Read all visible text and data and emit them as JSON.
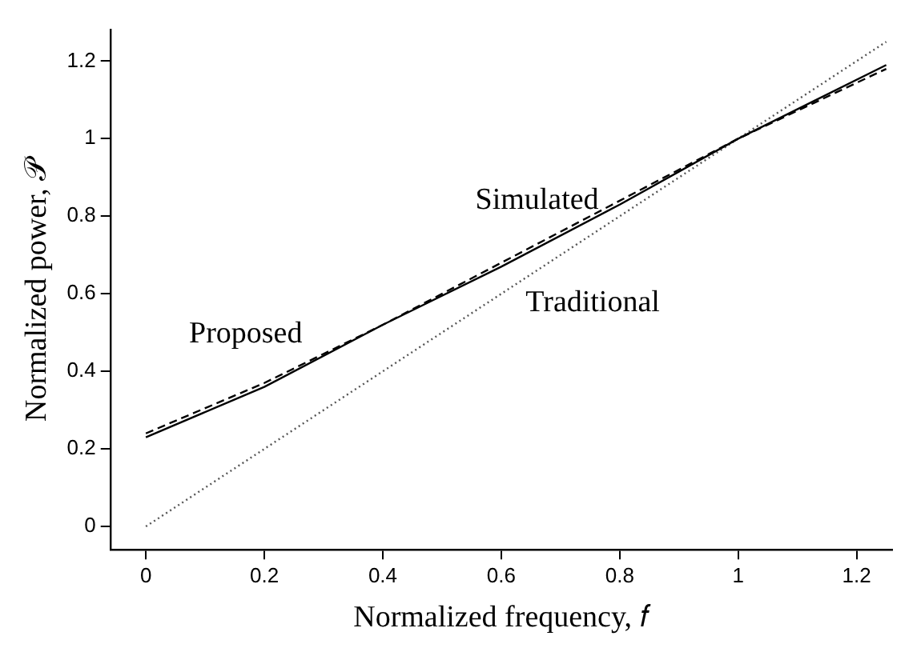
{
  "chart_data": {
    "type": "line",
    "xlabel": "Normalized frequency, 𝑓",
    "ylabel": "Normalized power, 𝒫",
    "xlim": [
      -0.06,
      1.26
    ],
    "ylim": [
      -0.06,
      1.28
    ],
    "xticks": [
      0,
      0.2,
      0.4,
      0.6,
      0.8,
      1,
      1.2
    ],
    "yticks": [
      0,
      0.2,
      0.4,
      0.6,
      0.8,
      1,
      1.2
    ],
    "grid": false,
    "legend": false,
    "marker": "none",
    "series": [
      {
        "name": "Proposed",
        "color": "#000000",
        "line_style": "solid",
        "x": [
          0,
          0.2,
          0.4,
          0.6,
          0.8,
          1,
          1.25
        ],
        "values": [
          0.23,
          0.36,
          0.52,
          0.67,
          0.83,
          1.0,
          1.19
        ]
      },
      {
        "name": "Simulated",
        "color": "#000000",
        "line_style": "dashed",
        "x": [
          0,
          0.2,
          0.4,
          0.6,
          0.8,
          1,
          1.25
        ],
        "values": [
          0.24,
          0.37,
          0.52,
          0.68,
          0.84,
          1.0,
          1.18
        ]
      },
      {
        "name": "Traditional",
        "color": "#555555",
        "line_style": "dotted",
        "x": [
          0,
          1.25
        ],
        "values": [
          0,
          1.25
        ]
      }
    ]
  }
}
